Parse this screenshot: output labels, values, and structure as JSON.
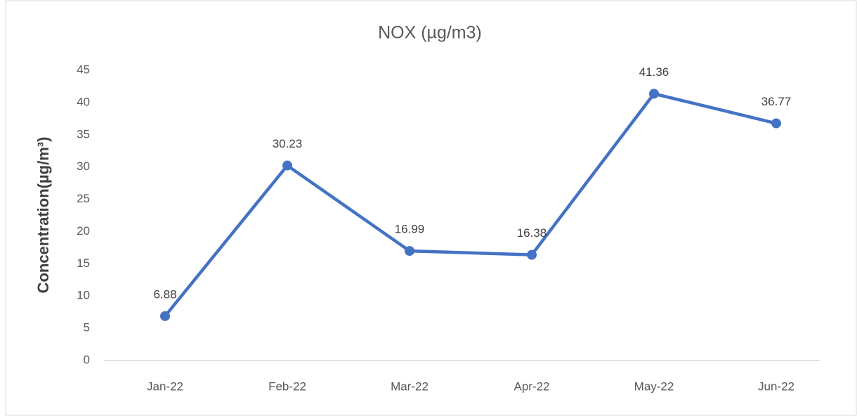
{
  "chart_data": {
    "type": "line",
    "title": "NOX (µg/m3)",
    "y_label": "Concentration(µg/m³)",
    "categories": [
      "Jan-22",
      "Feb-22",
      "Mar-22",
      "Apr-22",
      "May-22",
      "Jun-22"
    ],
    "values": [
      6.88,
      30.23,
      16.99,
      16.38,
      41.36,
      36.77
    ],
    "color": "#4472c4",
    "ylim": [
      0,
      45
    ],
    "yticks": [
      0,
      5,
      10,
      15,
      20,
      25,
      30,
      35,
      40,
      45
    ],
    "grid": false
  }
}
